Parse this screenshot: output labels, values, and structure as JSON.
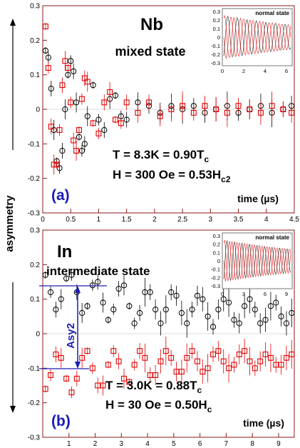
{
  "ylabel": "asymmetry",
  "chart_data": [
    {
      "type": "scatter",
      "title": "Nb",
      "subtitle": "mixed state",
      "panel_label": "(a)",
      "xlabel": "time (µs)",
      "xlim": [
        0,
        4.5
      ],
      "ylim": [
        -0.3,
        0.3
      ],
      "xticks": [
        "0",
        "0.5",
        "1",
        "1.5",
        "2",
        "2.5",
        "3",
        "3.5",
        "4",
        "4.5"
      ],
      "yticks": [
        "-0.3",
        "-0.2",
        "-0.1",
        "0",
        "0.1",
        "0.2",
        "0.3"
      ],
      "annotations": {
        "line1_main": "T = 8.3K = 0.90T",
        "line1_sub": "c",
        "line2_main": "H = 300 Oe = 0.53H",
        "line2_sub": "c2"
      },
      "series": [
        {
          "marker": "circle",
          "color": "#000000",
          "x": [
            0.05,
            0.1,
            0.15,
            0.2,
            0.25,
            0.3,
            0.35,
            0.4,
            0.45,
            0.5,
            0.55,
            0.6,
            0.65,
            0.7,
            0.75,
            0.8,
            0.9,
            1.0,
            1.1,
            1.2,
            1.3,
            1.4,
            1.5,
            1.7,
            1.9,
            2.1,
            2.3,
            2.5,
            2.7,
            2.9,
            3.1,
            3.3,
            3.5,
            3.7,
            3.9,
            4.1,
            4.3,
            4.45
          ],
          "y": [
            0.17,
            0.15,
            0.06,
            -0.06,
            -0.15,
            -0.17,
            -0.12,
            0.0,
            0.1,
            0.14,
            0.11,
            0.02,
            -0.08,
            -0.12,
            -0.1,
            -0.02,
            0.07,
            -0.03,
            -0.06,
            0.03,
            0.04,
            -0.02,
            -0.03,
            0.02,
            0.01,
            -0.01,
            0.01,
            0.0,
            0.01,
            -0.01,
            0.0,
            0.01,
            -0.01,
            0.0,
            0.01,
            -0.01,
            0.0,
            0.01
          ]
        },
        {
          "marker": "square",
          "color": "#e00000",
          "x": [
            0.05,
            0.1,
            0.15,
            0.2,
            0.25,
            0.3,
            0.35,
            0.4,
            0.45,
            0.5,
            0.55,
            0.6,
            0.65,
            0.7,
            0.75,
            0.8,
            0.9,
            1.0,
            1.1,
            1.2,
            1.3,
            1.4,
            1.5,
            1.7,
            1.9,
            2.1,
            2.3,
            2.5,
            2.7,
            2.9,
            3.1,
            3.3,
            3.5,
            3.7,
            3.9,
            4.1,
            4.3,
            4.45
          ],
          "y": [
            0.24,
            0.12,
            -0.05,
            -0.16,
            -0.16,
            -0.06,
            0.07,
            0.14,
            0.12,
            0.02,
            -0.09,
            -0.12,
            -0.06,
            0.03,
            0.09,
            0.08,
            -0.04,
            -0.07,
            0.02,
            0.05,
            -0.03,
            -0.04,
            0.02,
            -0.01,
            0.02,
            -0.02,
            0.0,
            0.01,
            -0.01,
            0.01,
            0.0,
            -0.01,
            0.01,
            0.0,
            -0.01,
            0.01,
            0.0,
            -0.01
          ]
        }
      ]
    },
    {
      "type": "scatter",
      "title": "In",
      "subtitle": "intermediate state",
      "panel_label": "(b)",
      "xlabel": "time (µs)",
      "xlim": [
        0,
        9.6
      ],
      "ylim": [
        -0.3,
        0.3
      ],
      "xticks": [
        "1",
        "2",
        "3",
        "4",
        "5",
        "6",
        "7",
        "8",
        "9"
      ],
      "yticks": [
        "-0.3",
        "-0.2",
        "-0.1",
        "0",
        "0.1",
        "0.2",
        "0.3"
      ],
      "annotations": {
        "line1_main": "T = 3.0K = 0.88T",
        "line1_sub": "c",
        "line2_main": "H = 30 Oe = 0.50H",
        "line2_sub": "c",
        "asy_label": "Asy2"
      },
      "series": [
        {
          "marker": "circle",
          "color": "#000000",
          "x": [
            0.1,
            0.3,
            0.5,
            0.7,
            0.9,
            1.1,
            1.3,
            1.5,
            1.7,
            1.9,
            2.1,
            2.3,
            2.5,
            2.7,
            2.9,
            3.1,
            3.3,
            3.5,
            3.7,
            3.9,
            4.1,
            4.3,
            4.5,
            4.7,
            4.9,
            5.1,
            5.3,
            5.5,
            5.7,
            5.9,
            6.1,
            6.3,
            6.5,
            6.7,
            6.9,
            7.1,
            7.3,
            7.5,
            7.7,
            7.9,
            8.1,
            8.3,
            8.5,
            8.7,
            8.9,
            9.1,
            9.3,
            9.5
          ],
          "y": [
            0.17,
            0.12,
            0.07,
            0.1,
            0.16,
            0.17,
            0.12,
            0.06,
            0.08,
            0.14,
            0.15,
            0.09,
            0.04,
            0.07,
            0.13,
            0.14,
            0.08,
            0.03,
            0.06,
            0.12,
            0.12,
            0.07,
            0.03,
            0.07,
            0.12,
            0.11,
            0.06,
            0.03,
            0.07,
            0.11,
            0.1,
            0.05,
            0.02,
            0.07,
            0.1,
            0.09,
            0.04,
            0.03,
            0.08,
            0.1,
            0.07,
            0.03,
            0.04,
            0.08,
            0.09,
            0.05,
            0.03,
            0.06
          ]
        },
        {
          "marker": "square",
          "color": "#e00000",
          "x": [
            0.1,
            0.3,
            0.5,
            0.7,
            0.9,
            1.1,
            1.3,
            1.5,
            1.7,
            1.9,
            2.1,
            2.3,
            2.5,
            2.7,
            2.9,
            3.1,
            3.3,
            3.5,
            3.7,
            3.9,
            4.1,
            4.3,
            4.5,
            4.7,
            4.9,
            5.1,
            5.3,
            5.5,
            5.7,
            5.9,
            6.1,
            6.3,
            6.5,
            6.7,
            6.9,
            7.1,
            7.3,
            7.5,
            7.7,
            7.9,
            8.1,
            8.3,
            8.5,
            8.7,
            8.9,
            9.1,
            9.3,
            9.5
          ],
          "y": [
            -0.16,
            -0.12,
            -0.06,
            -0.07,
            -0.13,
            -0.17,
            -0.13,
            -0.07,
            -0.05,
            -0.1,
            -0.15,
            -0.15,
            -0.09,
            -0.05,
            -0.08,
            -0.13,
            -0.14,
            -0.09,
            -0.05,
            -0.07,
            -0.12,
            -0.12,
            -0.08,
            -0.05,
            -0.07,
            -0.11,
            -0.11,
            -0.07,
            -0.05,
            -0.08,
            -0.11,
            -0.1,
            -0.06,
            -0.05,
            -0.08,
            -0.1,
            -0.09,
            -0.06,
            -0.05,
            -0.08,
            -0.1,
            -0.08,
            -0.06,
            -0.07,
            -0.09,
            -0.09,
            -0.07,
            -0.06
          ]
        }
      ]
    }
  ],
  "insets": [
    {
      "title": "normal state",
      "xticks": [
        "0",
        "2",
        "4",
        "6"
      ],
      "yticks": [
        "0.3",
        "0.2",
        "0.1",
        "0",
        "-0.1",
        "-0.2",
        "-0.3"
      ]
    },
    {
      "title": "normal state",
      "xticks": [
        "0",
        "3",
        "6",
        "9"
      ],
      "yticks": [
        "0.3",
        "0.2",
        "0.1",
        "0",
        "-0.1",
        "-0.2",
        "-0.3"
      ]
    }
  ],
  "colors": {
    "red": "#e00000",
    "black": "#000000",
    "blue": "#1c1cb4",
    "axis": "#8b1a1a"
  }
}
